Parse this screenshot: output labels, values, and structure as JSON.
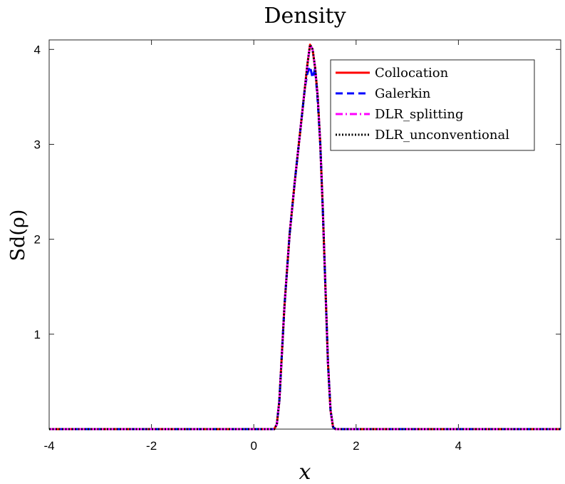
{
  "chart_data": {
    "type": "line",
    "title": "Density",
    "xlabel": "x",
    "ylabel": "Sd(ρ)",
    "xlim": [
      -4,
      6
    ],
    "ylim": [
      0,
      4.1
    ],
    "xticks": [
      -4,
      -2,
      0,
      2,
      4
    ],
    "yticks": [
      1,
      2,
      3,
      4
    ],
    "legend_position": "top-right",
    "grid": false,
    "series": [
      {
        "name": "Collocation",
        "color": "#ff0000",
        "style": "solid",
        "x": [
          -4,
          0.4,
          0.45,
          0.5,
          0.55,
          0.6,
          0.7,
          0.8,
          0.9,
          1.0,
          1.05,
          1.1,
          1.15,
          1.2,
          1.25,
          1.3,
          1.35,
          1.4,
          1.45,
          1.5,
          1.55,
          1.6,
          6
        ],
        "y": [
          0,
          0,
          0.05,
          0.3,
          0.8,
          1.3,
          2.05,
          2.6,
          3.1,
          3.6,
          3.85,
          4.05,
          4.0,
          3.8,
          3.5,
          3.0,
          2.3,
          1.5,
          0.7,
          0.2,
          0.02,
          0,
          0
        ]
      },
      {
        "name": "Galerkin",
        "color": "#0000ff",
        "style": "dashed",
        "x": [
          -4,
          0.4,
          0.45,
          0.5,
          0.55,
          0.6,
          0.7,
          0.8,
          0.9,
          1.0,
          1.05,
          1.1,
          1.15,
          1.2,
          1.25,
          1.3,
          1.35,
          1.4,
          1.45,
          1.5,
          1.55,
          1.6,
          6
        ],
        "y": [
          0,
          0,
          0.05,
          0.3,
          0.8,
          1.3,
          2.05,
          2.6,
          3.1,
          3.6,
          3.75,
          3.82,
          3.7,
          3.8,
          3.45,
          3.0,
          2.3,
          1.5,
          0.7,
          0.2,
          0.02,
          0,
          0
        ]
      },
      {
        "name": "DLR_splitting",
        "color": "#ff00ff",
        "style": "dashdot",
        "x": [
          -4,
          0.4,
          0.45,
          0.5,
          0.55,
          0.6,
          0.7,
          0.8,
          0.9,
          1.0,
          1.05,
          1.1,
          1.15,
          1.2,
          1.25,
          1.3,
          1.35,
          1.4,
          1.45,
          1.5,
          1.55,
          1.6,
          6
        ],
        "y": [
          0,
          0,
          0.05,
          0.3,
          0.8,
          1.3,
          2.05,
          2.6,
          3.1,
          3.6,
          3.85,
          4.05,
          4.0,
          3.8,
          3.5,
          3.0,
          2.3,
          1.5,
          0.7,
          0.2,
          0.02,
          0,
          0
        ]
      },
      {
        "name": "DLR_unconventional",
        "color": "#000000",
        "style": "dotted",
        "x": [
          -4,
          0.4,
          0.45,
          0.5,
          0.55,
          0.6,
          0.7,
          0.8,
          0.9,
          1.0,
          1.05,
          1.1,
          1.15,
          1.2,
          1.25,
          1.3,
          1.35,
          1.4,
          1.45,
          1.5,
          1.55,
          1.6,
          6
        ],
        "y": [
          0,
          0,
          0.05,
          0.3,
          0.8,
          1.3,
          2.05,
          2.6,
          3.1,
          3.6,
          3.85,
          4.05,
          4.0,
          3.8,
          3.5,
          3.0,
          2.3,
          1.5,
          0.7,
          0.2,
          0.02,
          0,
          0
        ]
      }
    ]
  }
}
